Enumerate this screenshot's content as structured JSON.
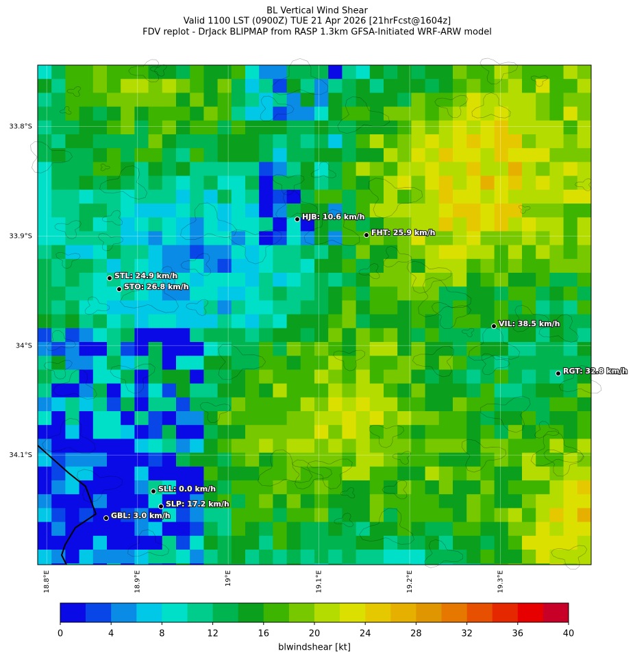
{
  "title": [
    "BL Vertical Wind Shear",
    "Valid 1100 LST (0900Z) TUE 21 Apr 2026 [21hrFcst@1604z]",
    "FDV replot - DrJack BLIPMAP from RASP 1.3km GFSA-Initiated WRF-ARW model"
  ],
  "map": {
    "xlim": [
      18.79,
      19.4
    ],
    "ylim": [
      -34.2,
      -33.744
    ],
    "xticks": [
      {
        "value": 18.8,
        "label": "18.8°E"
      },
      {
        "value": 18.9,
        "label": "18.9°E"
      },
      {
        "value": 19.0,
        "label": "19°E"
      },
      {
        "value": 19.1,
        "label": "19.1°E"
      },
      {
        "value": 19.2,
        "label": "19.2°E"
      },
      {
        "value": 19.3,
        "label": "19.3°E"
      }
    ],
    "yticks": [
      {
        "value": -33.8,
        "label": "33.8°S"
      },
      {
        "value": -33.9,
        "label": "33.9°S"
      },
      {
        "value": -34.0,
        "label": "34°S"
      },
      {
        "value": -34.1,
        "label": "34.1°S"
      }
    ],
    "stations": [
      "HJB: 10.6 km/h",
      "FHT: 25.9 km/h",
      "STL: 24.9 km/h",
      "STO: 26.8 km/h",
      "VIL: 38.5 km/h",
      "RGT: 32.8 km/h",
      "SLL: 0.0 km/h",
      "SLP: 17.2 km/h",
      "GBL: 3.0 km/h"
    ]
  },
  "colorbar": {
    "label": "blwindshear [kt]",
    "lim": [
      0,
      40
    ],
    "ticks": [
      0,
      4,
      8,
      12,
      16,
      20,
      24,
      28,
      32,
      36,
      40
    ],
    "colors": [
      "#0a0ae6",
      "#0846e8",
      "#0a8ce6",
      "#00c8e6",
      "#00e0c8",
      "#00cc8c",
      "#00b450",
      "#0aa01e",
      "#3cb400",
      "#78c800",
      "#b4dc00",
      "#dce000",
      "#e6c800",
      "#e6b000",
      "#e09600",
      "#e67800",
      "#e65000",
      "#e62800",
      "#e60000",
      "#c80028"
    ]
  }
}
